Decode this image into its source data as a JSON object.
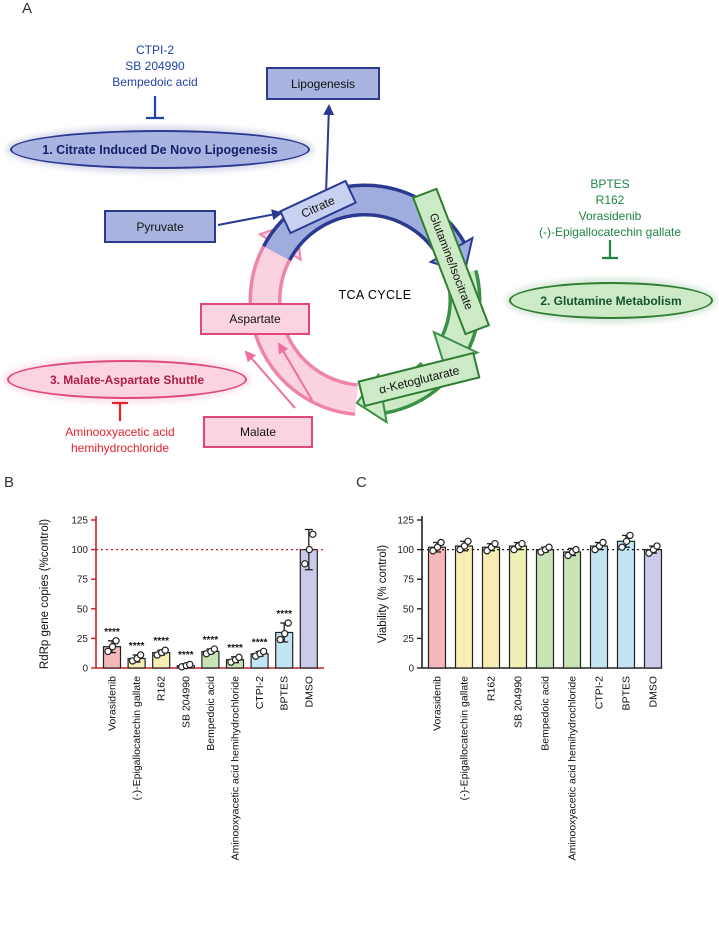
{
  "figure": {
    "panel_a": {
      "label": "A",
      "blue_inhibitors": [
        "CTPI-2",
        "SB 204990",
        "Bempedoic acid"
      ],
      "pathway1": "1. Citrate Induced De Novo Lipogenesis",
      "boxes": {
        "lipogenesis": "Lipogenesis",
        "pyruvate": "Pyruvate",
        "citrate": "Citrate",
        "glutamine_isocitrate": "Glutamine/Isocitrate",
        "alpha_ketoglutarate": "α-Ketoglutarate",
        "aspartate": "Aspartate",
        "malate": "Malate"
      },
      "tca_label": "TCA CYCLE",
      "green_inhibitors": [
        "BPTES",
        "R162",
        "Vorasidenib",
        "(-)-Epigallocatechin gallate"
      ],
      "pathway2": "2. Glutamine Metabolism",
      "pathway3": "3. Malate-Aspartate Shuttle",
      "red_inhibitor_lines": [
        "Aminooxyacetic acid",
        "hemihydrochloride"
      ],
      "colors": {
        "blue_dark": "#2b3990",
        "blue_fill": "#a9b4e0",
        "green_dark": "#2e7d32",
        "green_fill": "#cdeac6",
        "pink_dark": "#e0487a",
        "pink_fill": "#fbd3e3",
        "blue_text": "#2143a5",
        "green_text": "#1e8449",
        "red_text": "#e8212e"
      }
    },
    "panel_b_label": "B",
    "panel_c_label": "C"
  },
  "chart_data": [
    {
      "panel": "B",
      "type": "bar",
      "ylabel": "RdRp gene copies (%control)",
      "categories": [
        "Vorasidenib",
        "(-)-Epigallocatechin gallate",
        "R162",
        "SB 204990",
        "Bempedoic acid",
        "Aminooxyacetic acid hemihydrochloride",
        "CTPI-2",
        "BPTES",
        "DMSO"
      ],
      "values": [
        18,
        8,
        13,
        2,
        14,
        7,
        12,
        30,
        100
      ],
      "sd": [
        5,
        3,
        2,
        1.5,
        2,
        2.5,
        2,
        8,
        17
      ],
      "points": [
        [
          14,
          18,
          23
        ],
        [
          6,
          8,
          11
        ],
        [
          11,
          13,
          15
        ],
        [
          1,
          2,
          3
        ],
        [
          12,
          14,
          16
        ],
        [
          5,
          7,
          9
        ],
        [
          10,
          12,
          14
        ],
        [
          24,
          29,
          38
        ],
        [
          88,
          100,
          113
        ]
      ],
      "significance": [
        "****",
        "****",
        "****",
        "****",
        "****",
        "****",
        "****",
        "****",
        ""
      ],
      "ylim": [
        0,
        125
      ],
      "yticks": [
        0,
        25,
        50,
        75,
        100,
        125
      ],
      "ref_line": 100,
      "grid": false,
      "axis_color": "#cb2026",
      "ref_color": "#cb2026",
      "bar_colors": [
        "#f5b9bb",
        "#f8edb4",
        "#f8edb4",
        "#eff0b6",
        "#c9e4b4",
        "#c9e4b4",
        "#c2e4f3",
        "#c2e4f3",
        "#cacae9"
      ]
    },
    {
      "panel": "C",
      "type": "bar",
      "ylabel": "Viability (% control)",
      "categories": [
        "Vorasidenib",
        "(-)-Epigallocatechin gallate",
        "R162",
        "SB 204990",
        "Bempedoic acid",
        "Aminooxyacetic acid hemihydrochloride",
        "CTPI-2",
        "BPTES",
        "DMSO"
      ],
      "values": [
        102,
        103,
        102,
        103,
        100,
        98,
        103,
        107,
        100
      ],
      "sd": [
        4,
        4,
        3,
        3,
        2,
        3,
        3,
        5,
        3
      ],
      "points": [
        [
          99,
          102,
          106
        ],
        [
          100,
          103,
          107
        ],
        [
          99,
          102,
          105
        ],
        [
          100,
          103,
          105
        ],
        [
          98,
          100,
          102
        ],
        [
          95,
          98,
          100
        ],
        [
          100,
          103,
          106
        ],
        [
          102,
          107,
          112
        ],
        [
          97,
          100,
          103
        ]
      ],
      "significance": [
        "",
        "",
        "",
        "",
        "",
        "",
        "",
        "",
        ""
      ],
      "ylim": [
        0,
        125
      ],
      "yticks": [
        0,
        25,
        50,
        75,
        100,
        125
      ],
      "ref_line": 100,
      "grid": false,
      "axis_color": "#222222",
      "ref_color": "#222222",
      "bar_colors": [
        "#f5b9bb",
        "#f8edb4",
        "#f8edb4",
        "#eff0b6",
        "#c9e4b4",
        "#c9e4b4",
        "#c2e4f3",
        "#c2e4f3",
        "#cacae9"
      ]
    }
  ]
}
